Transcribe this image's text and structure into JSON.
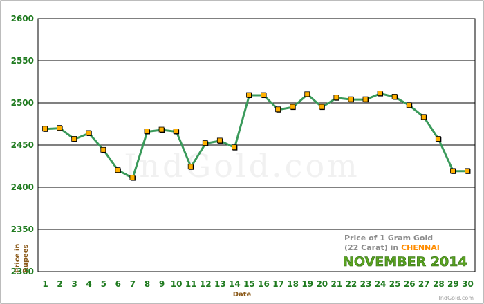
{
  "chart_data": {
    "type": "line",
    "title_lines": [
      "Price of 1 Gram Gold",
      "(22 Carat) in "
    ],
    "city": "CHENNAI",
    "month": "NOVEMBER 2014",
    "xlabel": "Date",
    "ylabel_lines": [
      "Price in",
      "Rupees"
    ],
    "x": [
      1,
      2,
      3,
      4,
      5,
      6,
      7,
      8,
      9,
      10,
      11,
      12,
      13,
      14,
      15,
      16,
      17,
      18,
      19,
      20,
      21,
      22,
      23,
      24,
      25,
      26,
      27,
      28,
      29,
      30
    ],
    "values": [
      2469,
      2470,
      2457,
      2464,
      2444,
      2420,
      2411,
      2466,
      2468,
      2466,
      2424,
      2452,
      2455,
      2447,
      2509,
      2509,
      2492,
      2495,
      2510,
      2495,
      2506,
      2504,
      2504,
      2511,
      2507,
      2497,
      2483,
      2457,
      2419,
      2419
    ],
    "yticks": [
      2300,
      2350,
      2400,
      2450,
      2500,
      2550,
      2600
    ],
    "ylim": [
      2300,
      2600
    ],
    "grid": true,
    "watermark": "IndGold.com",
    "credit": "IndGold.com",
    "colors": {
      "line": "#3a9a5b",
      "marker": "#ffb000",
      "marker_border": "#000000",
      "tick_text": "#1f7a1f",
      "axis_title": "#8b5a1a",
      "city": "#ff8c00",
      "month": "#5aa321"
    }
  }
}
